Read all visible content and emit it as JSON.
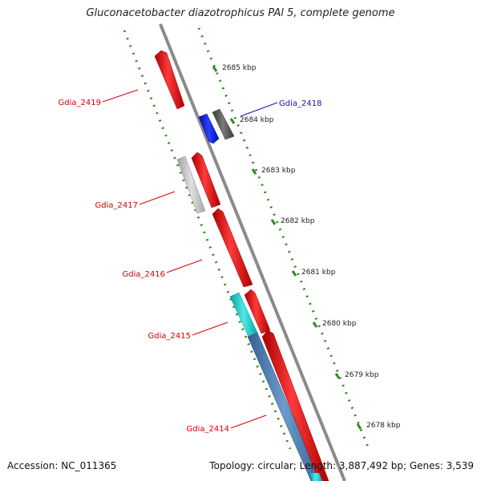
{
  "title": "Gluconacetobacter diazotrophicus PAl 5, complete genome",
  "footer": {
    "accession": "Accession: NC_011365",
    "summary": "Topology: circular; Length: 3,887,492 bp; Genes: 3,539"
  },
  "ticks": [
    "2685 kbp",
    "2684 kbp",
    "2683 kbp",
    "2682 kbp",
    "2681 kbp",
    "2680 kbp",
    "2679 kbp",
    "2678 kbp"
  ],
  "gene_labels": {
    "g2419": "Gdia_2419",
    "g2418": "Gdia_2418",
    "g2417": "Gdia_2417",
    "g2416": "Gdia_2416",
    "g2415": "Gdia_2415",
    "g2414": "Gdia_2414"
  },
  "colors": {
    "backbone": "#8a8a8a",
    "tick_green": "#2e8b22",
    "gene_red": "#e8141b",
    "gene_blue": "#1020e0",
    "gene_gray": "#555555",
    "gene_lightgray": "#bdbdbd",
    "gene_cyan": "#1cc6c6",
    "gene_steelblue": "#4a7fb0",
    "label_red": "#d40000",
    "label_blue": "#1010c0"
  }
}
